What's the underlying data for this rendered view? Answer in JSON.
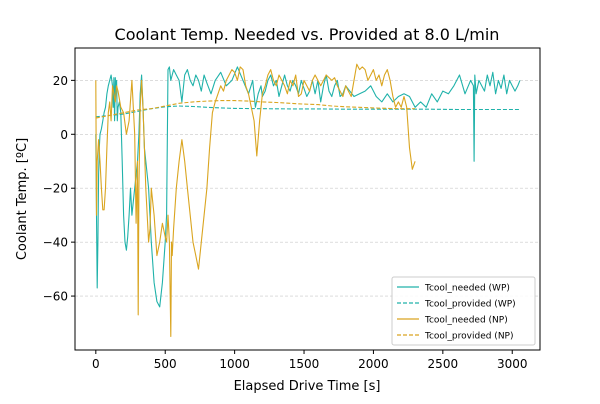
{
  "chart_data": {
    "type": "line",
    "title": "Coolant Temp. Needed vs. Provided at 8.0 L/min",
    "xlabel": "Elapsed Drive Time [s]",
    "ylabel": "Coolant Temp. [ºC]",
    "xlim": [
      -150,
      3200
    ],
    "ylim": [
      -80,
      32
    ],
    "xticks": [
      0,
      500,
      1000,
      1500,
      2000,
      2500,
      3000
    ],
    "yticks": [
      -60,
      -40,
      -20,
      0,
      20
    ],
    "grid": "horizontal-dashed",
    "legend_position": "lower-right",
    "series": [
      {
        "name": "Tcool_needed (WP)",
        "color": "#20b2aa",
        "dash": "solid",
        "x": [
          0,
          5,
          10,
          15,
          20,
          25,
          30,
          40,
          50,
          60,
          70,
          80,
          90,
          100,
          110,
          120,
          125,
          130,
          135,
          140,
          145,
          150,
          155,
          160,
          170,
          180,
          190,
          200,
          210,
          220,
          230,
          240,
          250,
          260,
          270,
          280,
          290,
          300,
          310,
          320,
          330,
          340,
          350,
          360,
          380,
          400,
          420,
          440,
          460,
          480,
          500,
          510,
          520,
          530,
          540,
          560,
          580,
          600,
          620,
          640,
          660,
          680,
          700,
          720,
          740,
          760,
          780,
          800,
          830,
          860,
          900,
          940,
          980,
          1020,
          1060,
          1100,
          1130,
          1150,
          1170,
          1190,
          1200,
          1220,
          1240,
          1260,
          1280,
          1300,
          1320,
          1340,
          1360,
          1380,
          1400,
          1420,
          1440,
          1460,
          1480,
          1500,
          1520,
          1540,
          1560,
          1580,
          1600,
          1620,
          1640,
          1660,
          1680,
          1700,
          1720,
          1740,
          1760,
          1780,
          1800,
          1830,
          1860,
          1900,
          1940,
          1980,
          2020,
          2060,
          2100,
          2140,
          2180,
          2220,
          2260,
          2300,
          2340,
          2380,
          2420,
          2460,
          2500,
          2540,
          2580,
          2620,
          2660,
          2700,
          2720,
          2725,
          2730,
          2740,
          2760,
          2780,
          2800,
          2820,
          2840,
          2860,
          2880,
          2900,
          2920,
          2940,
          2960,
          2980,
          3000,
          3020,
          3040,
          3055
        ],
        "y": [
          0,
          -30,
          -57,
          -40,
          -15,
          -5,
          0,
          2,
          5,
          8,
          10,
          15,
          18,
          20,
          22,
          18,
          10,
          21,
          5,
          21,
          15,
          20,
          5,
          10,
          12,
          8,
          -10,
          -30,
          -40,
          -43,
          -38,
          -30,
          -20,
          -30,
          -25,
          -20,
          -15,
          -10,
          0,
          15,
          22,
          10,
          -5,
          -10,
          -20,
          -40,
          -55,
          -62,
          -64,
          -55,
          -40,
          -30,
          24,
          25,
          20,
          24,
          22,
          20,
          12,
          22,
          24,
          20,
          18,
          22,
          20,
          16,
          22,
          19,
          15,
          20,
          23,
          18,
          20,
          25,
          20,
          15,
          20,
          10,
          15,
          18,
          14,
          16,
          20,
          22,
          18,
          20,
          14,
          18,
          22,
          18,
          16,
          20,
          18,
          15,
          20,
          17,
          14,
          16,
          20,
          15,
          20,
          12,
          18,
          22,
          16,
          14,
          18,
          20,
          14,
          15,
          18,
          16,
          14,
          15,
          16,
          18,
          14,
          12,
          15,
          12,
          14,
          15,
          14,
          10,
          12,
          10,
          15,
          12,
          16,
          15,
          18,
          22,
          15,
          20,
          18,
          -10,
          22,
          15,
          20,
          18,
          16,
          22,
          18,
          23,
          15,
          20,
          17,
          22,
          15,
          20,
          18,
          16,
          18,
          20
        ]
      },
      {
        "name": "Tcool_provided (WP)",
        "color": "#20b2aa",
        "dash": "dashed",
        "x": [
          0,
          100,
          200,
          300,
          400,
          500,
          600,
          700,
          800,
          900,
          1000,
          1200,
          1400,
          1600,
          1800,
          2000,
          2200,
          2400,
          2600,
          2800,
          3000,
          3055
        ],
        "y": [
          6.5,
          7,
          7.5,
          8.5,
          9.5,
          10.2,
          10.5,
          10.3,
          10,
          9.8,
          9.6,
          9.5,
          9.4,
          9.4,
          9.3,
          9.3,
          9.3,
          9.3,
          9.2,
          9.2,
          9.2,
          9.2
        ]
      },
      {
        "name": "Tcool_needed (NP)",
        "color": "#daa520",
        "dash": "solid",
        "x": [
          0,
          5,
          10,
          20,
          30,
          40,
          50,
          60,
          70,
          80,
          90,
          100,
          110,
          120,
          130,
          140,
          150,
          160,
          180,
          200,
          220,
          240,
          260,
          280,
          290,
          300,
          305,
          310,
          320,
          330,
          340,
          350,
          360,
          370,
          380,
          390,
          400,
          420,
          440,
          460,
          480,
          500,
          510,
          520,
          530,
          540,
          545,
          550,
          560,
          580,
          600,
          620,
          640,
          660,
          680,
          700,
          720,
          740,
          760,
          780,
          800,
          820,
          840,
          860,
          880,
          900,
          920,
          940,
          960,
          980,
          1000,
          1020,
          1040,
          1060,
          1080,
          1100,
          1120,
          1140,
          1160,
          1180,
          1200,
          1220,
          1240,
          1260,
          1280,
          1300,
          1320,
          1340,
          1360,
          1380,
          1400,
          1420,
          1440,
          1460,
          1480,
          1500,
          1520,
          1540,
          1560,
          1580,
          1600,
          1620,
          1640,
          1660,
          1680,
          1700,
          1720,
          1740,
          1760,
          1780,
          1800,
          1820,
          1840,
          1860,
          1880,
          1900,
          1920,
          1940,
          1960,
          1980,
          2000,
          2020,
          2040,
          2060,
          2080,
          2100,
          2120,
          2140,
          2160,
          2180,
          2200,
          2220,
          2240,
          2260,
          2280,
          2300
        ],
        "y": [
          20,
          -30,
          -10,
          -2,
          -10,
          -20,
          -28,
          -28,
          -20,
          -5,
          8,
          12,
          5,
          18,
          15,
          12,
          18,
          16,
          10,
          8,
          0,
          5,
          20,
          0,
          -33,
          -10,
          -67,
          -20,
          10,
          20,
          10,
          -5,
          -20,
          -30,
          -40,
          -35,
          -20,
          -30,
          -45,
          -40,
          -33,
          -38,
          -40,
          -30,
          -40,
          -75,
          -40,
          -45,
          -35,
          -20,
          -10,
          -2,
          -10,
          -20,
          -30,
          -40,
          -45,
          -50,
          -40,
          -30,
          -20,
          -5,
          8,
          12,
          15,
          18,
          16,
          20,
          22,
          24,
          23,
          20,
          25,
          24,
          18,
          15,
          10,
          5,
          -8,
          5,
          15,
          18,
          22,
          24,
          20,
          18,
          22,
          20,
          18,
          15,
          20,
          18,
          22,
          14,
          15,
          20,
          18,
          16,
          20,
          22,
          20,
          18,
          20,
          22,
          21,
          20,
          21,
          18,
          16,
          14,
          18,
          16,
          14,
          20,
          26,
          24,
          25,
          24,
          20,
          22,
          24,
          20,
          22,
          18,
          22,
          24,
          20,
          14,
          10,
          12,
          10,
          14,
          10,
          -5,
          -13,
          -10
        ]
      },
      {
        "name": "Tcool_provided (NP)",
        "color": "#daa520",
        "dash": "dashed",
        "x": [
          0,
          100,
          200,
          300,
          400,
          500,
          600,
          700,
          800,
          900,
          1000,
          1100,
          1200,
          1300,
          1400,
          1500,
          1600,
          1700,
          1800,
          1900,
          2000,
          2100,
          2200,
          2300
        ],
        "y": [
          6,
          7,
          8,
          9,
          9.5,
          10.5,
          11.5,
          12,
          12.3,
          12.5,
          12.5,
          12.3,
          12,
          11.8,
          11.5,
          11.2,
          11,
          10.5,
          10.2,
          10,
          9.8,
          9.6,
          9.5,
          9.5
        ]
      }
    ]
  }
}
